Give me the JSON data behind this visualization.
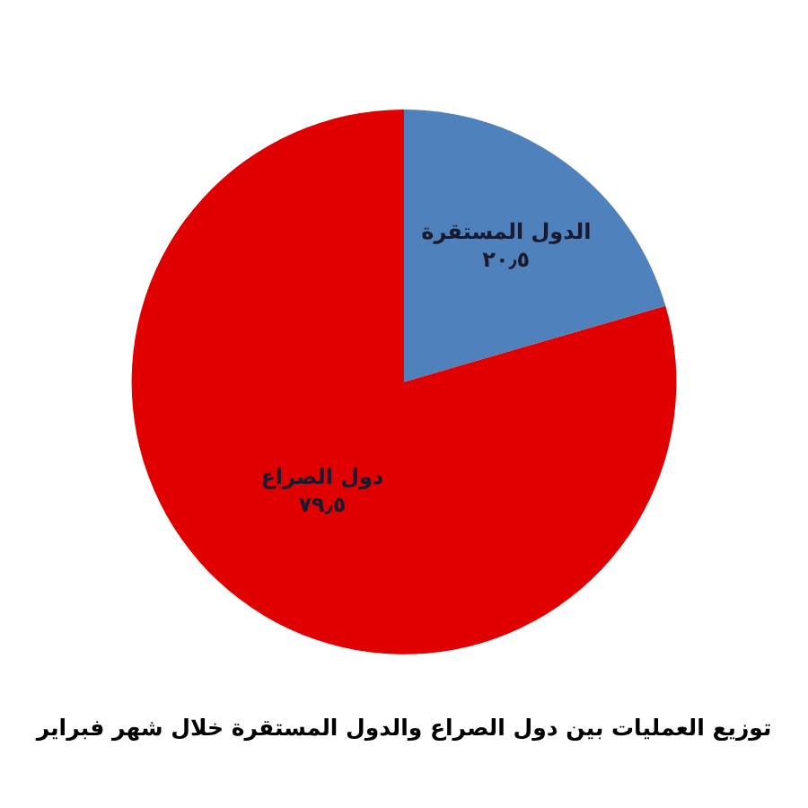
{
  "chart_data": {
    "type": "pie",
    "title": "توزيع العمليات بين دول الصراع والدول المستقرة خلال شهر فبراير",
    "categories": [
      "الدول المستقرة",
      "دول الصراع"
    ],
    "values": [
      20.5,
      79.5
    ],
    "value_labels": [
      "٢٠٫٥",
      "٧٩٫٥"
    ],
    "colors": [
      "#4f81bd",
      "#e00000"
    ]
  }
}
